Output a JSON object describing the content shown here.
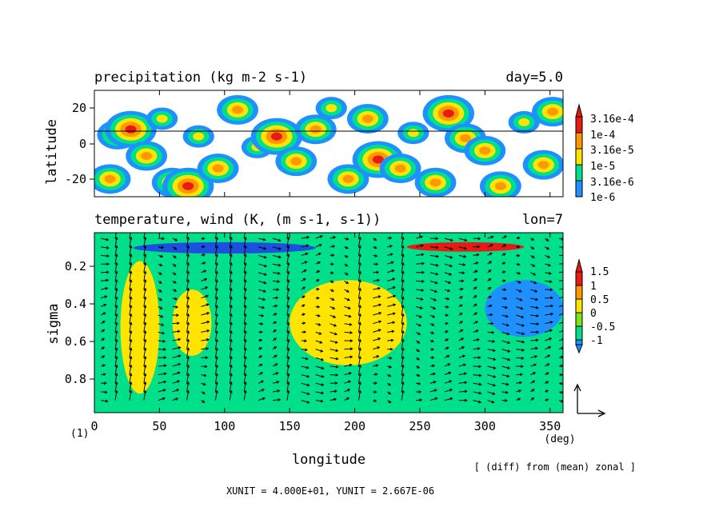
{
  "chart_data": [
    {
      "type": "heatmap",
      "title": "precipitation (kg m-2 s-1)",
      "annotation": "day=5.0",
      "xlabel": "",
      "ylabel": "latitude",
      "xlim": [
        0,
        360
      ],
      "ylim": [
        -30,
        30
      ],
      "x_ticks": [
        0,
        50,
        100,
        150,
        200,
        250,
        300,
        350
      ],
      "y_ticks": [
        {
          "value": 20,
          "label": "20"
        },
        {
          "value": 0,
          "label": "0"
        },
        {
          "value": -20,
          "label": "-20"
        }
      ],
      "reference_line_lat": 7,
      "legend": {
        "levels": [
          "3.16e-4",
          "1e-4",
          "3.16e-5",
          "1e-5",
          "3.16e-6",
          "1e-6"
        ],
        "colors": [
          "#ffffff",
          "#1e90ff",
          "#00e08a",
          "#ffe400",
          "#ff9800",
          "#e81a14"
        ],
        "placement": "right"
      },
      "cells": [
        {
          "lon": 12,
          "lat": -20,
          "level": 4
        },
        {
          "lon": 18,
          "lat": 5,
          "level": 4
        },
        {
          "lon": 28,
          "lat": 8,
          "level": 5
        },
        {
          "lon": 40,
          "lat": -7,
          "level": 4
        },
        {
          "lon": 52,
          "lat": 14,
          "level": 3
        },
        {
          "lon": 60,
          "lat": -22,
          "level": 4
        },
        {
          "lon": 72,
          "lat": -24,
          "level": 5
        },
        {
          "lon": 80,
          "lat": 4,
          "level": 3
        },
        {
          "lon": 95,
          "lat": -14,
          "level": 4
        },
        {
          "lon": 110,
          "lat": 19,
          "level": 4
        },
        {
          "lon": 125,
          "lat": -2,
          "level": 3
        },
        {
          "lon": 140,
          "lat": 4,
          "level": 5
        },
        {
          "lon": 155,
          "lat": -10,
          "level": 4
        },
        {
          "lon": 170,
          "lat": 8,
          "level": 4
        },
        {
          "lon": 182,
          "lat": 20,
          "level": 3
        },
        {
          "lon": 195,
          "lat": -20,
          "level": 4
        },
        {
          "lon": 210,
          "lat": 14,
          "level": 4
        },
        {
          "lon": 218,
          "lat": -9,
          "level": 5
        },
        {
          "lon": 235,
          "lat": -14,
          "level": 4
        },
        {
          "lon": 245,
          "lat": 6,
          "level": 3
        },
        {
          "lon": 262,
          "lat": -22,
          "level": 4
        },
        {
          "lon": 272,
          "lat": 17,
          "level": 5
        },
        {
          "lon": 285,
          "lat": 3,
          "level": 4
        },
        {
          "lon": 300,
          "lat": -4,
          "level": 4
        },
        {
          "lon": 312,
          "lat": -24,
          "level": 4
        },
        {
          "lon": 330,
          "lat": 12,
          "level": 3
        },
        {
          "lon": 345,
          "lat": -12,
          "level": 4
        },
        {
          "lon": 352,
          "lat": 18,
          "level": 4
        }
      ]
    },
    {
      "type": "heatmap",
      "title": "temperature, wind (K, (m s-1, s-1))",
      "annotation": "lon=7",
      "xlabel": "longitude",
      "x_unit_label": "(deg)",
      "ylabel": "sigma",
      "xlim": [
        0,
        360
      ],
      "ylim": [
        1.0,
        0.05
      ],
      "x_ticks": [
        0,
        50,
        100,
        150,
        200,
        250,
        300,
        350
      ],
      "y_ticks": [
        0.2,
        0.4,
        0.6,
        0.8
      ],
      "y_tick_labels": [
        "0.2",
        "0.4",
        "0.6",
        "0.8"
      ],
      "legend": {
        "levels": [
          "1.5",
          "1",
          "0.5",
          "0",
          "-0.5",
          "-1"
        ],
        "colors": [
          "#1e90ff",
          "#00e08a",
          "#7ce31a",
          "#ffe400",
          "#ff9800",
          "#e81a14"
        ],
        "placement": "right"
      },
      "regions": [
        {
          "lon": [
            0,
            360
          ],
          "sigma": [
            0.05,
            1.0
          ],
          "value": 0.0
        },
        {
          "lon": [
            20,
            50
          ],
          "sigma": [
            0.2,
            0.9
          ],
          "value": 0.6
        },
        {
          "lon": [
            60,
            90
          ],
          "sigma": [
            0.35,
            0.7
          ],
          "value": 0.7
        },
        {
          "lon": [
            150,
            240
          ],
          "sigma": [
            0.3,
            0.75
          ],
          "value": 0.6
        },
        {
          "lon": [
            30,
            170
          ],
          "sigma": [
            0.1,
            0.16
          ],
          "value": -0.8
        },
        {
          "lon": [
            240,
            330
          ],
          "sigma": [
            0.1,
            0.15
          ],
          "value": 1.4
        },
        {
          "lon": [
            300,
            360
          ],
          "sigma": [
            0.3,
            0.6
          ],
          "value": -0.6
        }
      ],
      "vector_reference": {
        "xunit": 40.0,
        "yunit": 2.667e-06
      },
      "strong_vertical_motion_lon": [
        15,
        30,
        42,
        55,
        75,
        90,
        100,
        118,
        150,
        165,
        200,
        238
      ]
    }
  ],
  "figure": {
    "frame_label": "(1)",
    "footnote": "[ (diff) from (mean) zonal ]",
    "unit_text": "XUNIT = 4.000E+01, YUNIT = 2.667E-06"
  }
}
